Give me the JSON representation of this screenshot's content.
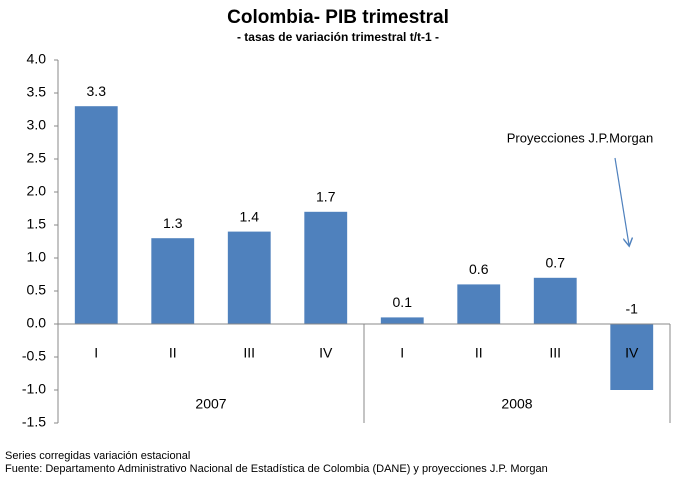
{
  "chart_data": {
    "type": "bar",
    "title": "Colombia- PIB trimestral",
    "subtitle": "- tasas de variación trimestral t/t-1 -",
    "groups": [
      {
        "name": "2007",
        "categories": [
          "I",
          "II",
          "III",
          "IV"
        ]
      },
      {
        "name": "2008",
        "categories": [
          "I",
          "II",
          "III",
          "IV"
        ]
      }
    ],
    "values": [
      3.3,
      1.3,
      1.4,
      1.7,
      0.1,
      0.6,
      0.7,
      -1
    ],
    "color": "#4f81bd",
    "ylim": [
      -1.5,
      4
    ],
    "yticks": [
      {
        "value": 4,
        "label": "4.0"
      },
      {
        "value": 3.5,
        "label": "3.5"
      },
      {
        "value": 3,
        "label": "3.0"
      },
      {
        "value": 2.5,
        "label": "2.5"
      },
      {
        "value": 2,
        "label": "2.0"
      },
      {
        "value": 1.5,
        "label": "1.5"
      },
      {
        "value": 1,
        "label": "1.0"
      },
      {
        "value": 0.5,
        "label": "0.5"
      },
      {
        "value": 0,
        "label": "0.0"
      },
      {
        "value": -0.5,
        "label": "-0.5"
      },
      {
        "value": -1,
        "label": "-1.0"
      },
      {
        "value": -1.5,
        "label": "-1.5"
      }
    ],
    "grid": false,
    "annotation": "Proyecciones J.P.Morgan",
    "notes": [
      "Series corregidas variación estacional",
      "Fuente: Departamento Administrativo  Nacional de Estadística de Colombia (DANE) y proyecciones J.P. Morgan"
    ]
  }
}
